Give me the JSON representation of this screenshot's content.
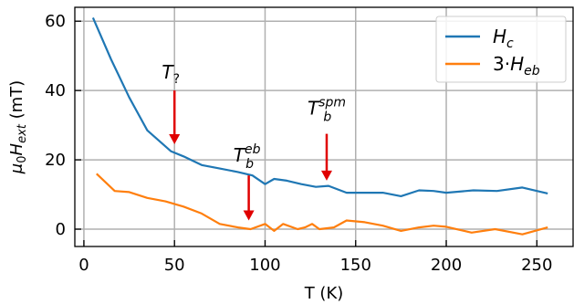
{
  "chart_data": {
    "type": "line",
    "xlabel": "T (K)",
    "ylabel": {
      "base": "μ",
      "base_sub": "0",
      "h": "H",
      "h_sub": "ext",
      "unit": " (mT)"
    },
    "xlim": [
      -5,
      270
    ],
    "ylim": [
      -5,
      64
    ],
    "xticks": [
      0,
      50,
      100,
      150,
      200,
      250
    ],
    "yticks": [
      0,
      20,
      40,
      60
    ],
    "grid": true,
    "legend_position": "top-right",
    "series": [
      {
        "name": "Hc",
        "label_parts": {
          "main": "H",
          "sub": "c"
        },
        "color": "#1f77b4",
        "x": [
          5,
          15,
          25,
          35,
          48,
          55,
          65,
          75,
          85,
          93,
          100,
          105,
          112,
          120,
          128,
          135,
          145,
          155,
          165,
          175,
          185,
          193,
          200,
          215,
          228,
          242,
          256
        ],
        "y": [
          61,
          49,
          38,
          28.5,
          22.5,
          21,
          18.5,
          17.5,
          16.5,
          15.5,
          13,
          14.5,
          14,
          13,
          12.2,
          12.5,
          10.5,
          10.5,
          10.5,
          9.5,
          11.2,
          11,
          10.5,
          11.2,
          11,
          12,
          10.3
        ]
      },
      {
        "name": "3·Heb",
        "label_parts": {
          "prefix": "3·",
          "main": "H",
          "sub": "eb"
        },
        "color": "#ff7f0e",
        "x": [
          7,
          17,
          25,
          35,
          45,
          55,
          65,
          75,
          85,
          92,
          100,
          105,
          110,
          118,
          122,
          126,
          130,
          138,
          145,
          155,
          165,
          175,
          185,
          193,
          200,
          214,
          227,
          242,
          256
        ],
        "y": [
          16,
          11,
          10.7,
          9,
          8,
          6.5,
          4.5,
          1.5,
          0.5,
          0,
          1.5,
          -0.5,
          1.5,
          0,
          0.5,
          1.5,
          0,
          0.5,
          2.5,
          2,
          1,
          -0.5,
          0.5,
          1,
          0.7,
          -1,
          0,
          -1.5,
          0.5
        ]
      }
    ],
    "annotations": [
      {
        "main": "T",
        "sub": "?",
        "sup": "",
        "arrow_x": 50,
        "arrow_y_top": 40,
        "arrow_y_bottom": 24.5,
        "label_x": 48,
        "label_y": 43.5
      },
      {
        "main": "T",
        "sub": "b",
        "sup": "eb",
        "arrow_x": 91,
        "arrow_y_top": 15.5,
        "arrow_y_bottom": 2.5,
        "label_x": 90,
        "label_y": 19.5
      },
      {
        "main": "T",
        "sub": "b",
        "sup": "spm",
        "arrow_x": 134,
        "arrow_y_top": 27.5,
        "arrow_y_bottom": 14,
        "label_x": 134,
        "label_y": 33
      }
    ],
    "annotation_color": "#e00000"
  }
}
